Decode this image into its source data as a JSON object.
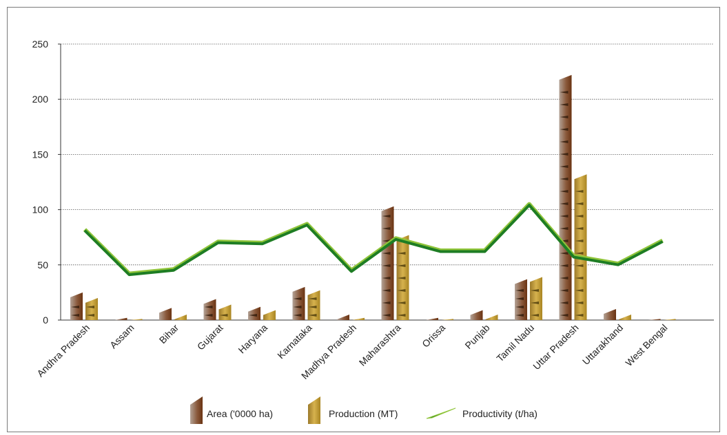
{
  "chart_data": {
    "type": "bar",
    "categories": [
      "Andhra Pradesh",
      "Assam",
      "Bihar",
      "Gujarat",
      "Haryana",
      "Karnataka",
      "Madhya Pradesh",
      "Maharashtra",
      "Orissa",
      "Punjab",
      "Tamil Nadu",
      "Uttar Pradesh",
      "Uttarakhand",
      "West Bengal"
    ],
    "series": [
      {
        "name": "Area ('0000 ha)",
        "type": "bar",
        "color": "#7b3f1a",
        "values": [
          25,
          2,
          11,
          19,
          12,
          30,
          5,
          103,
          2,
          9,
          37,
          222,
          10,
          1
        ]
      },
      {
        "name": "Production (MT)",
        "type": "bar",
        "color": "#b8902a",
        "values": [
          20,
          1,
          5,
          14,
          9,
          27,
          2,
          77,
          1,
          5,
          39,
          132,
          5,
          1
        ]
      },
      {
        "name": "Productivity (t/ha)",
        "type": "line",
        "color": "#1e7d24",
        "values": [
          82,
          42,
          46,
          71,
          70,
          87,
          45,
          74,
          63,
          63,
          105,
          58,
          51,
          72
        ]
      }
    ],
    "ylim": [
      0,
      250
    ],
    "yticks": [
      0,
      50,
      100,
      150,
      200,
      250
    ],
    "grid": true,
    "legend_position": "bottom-center"
  }
}
